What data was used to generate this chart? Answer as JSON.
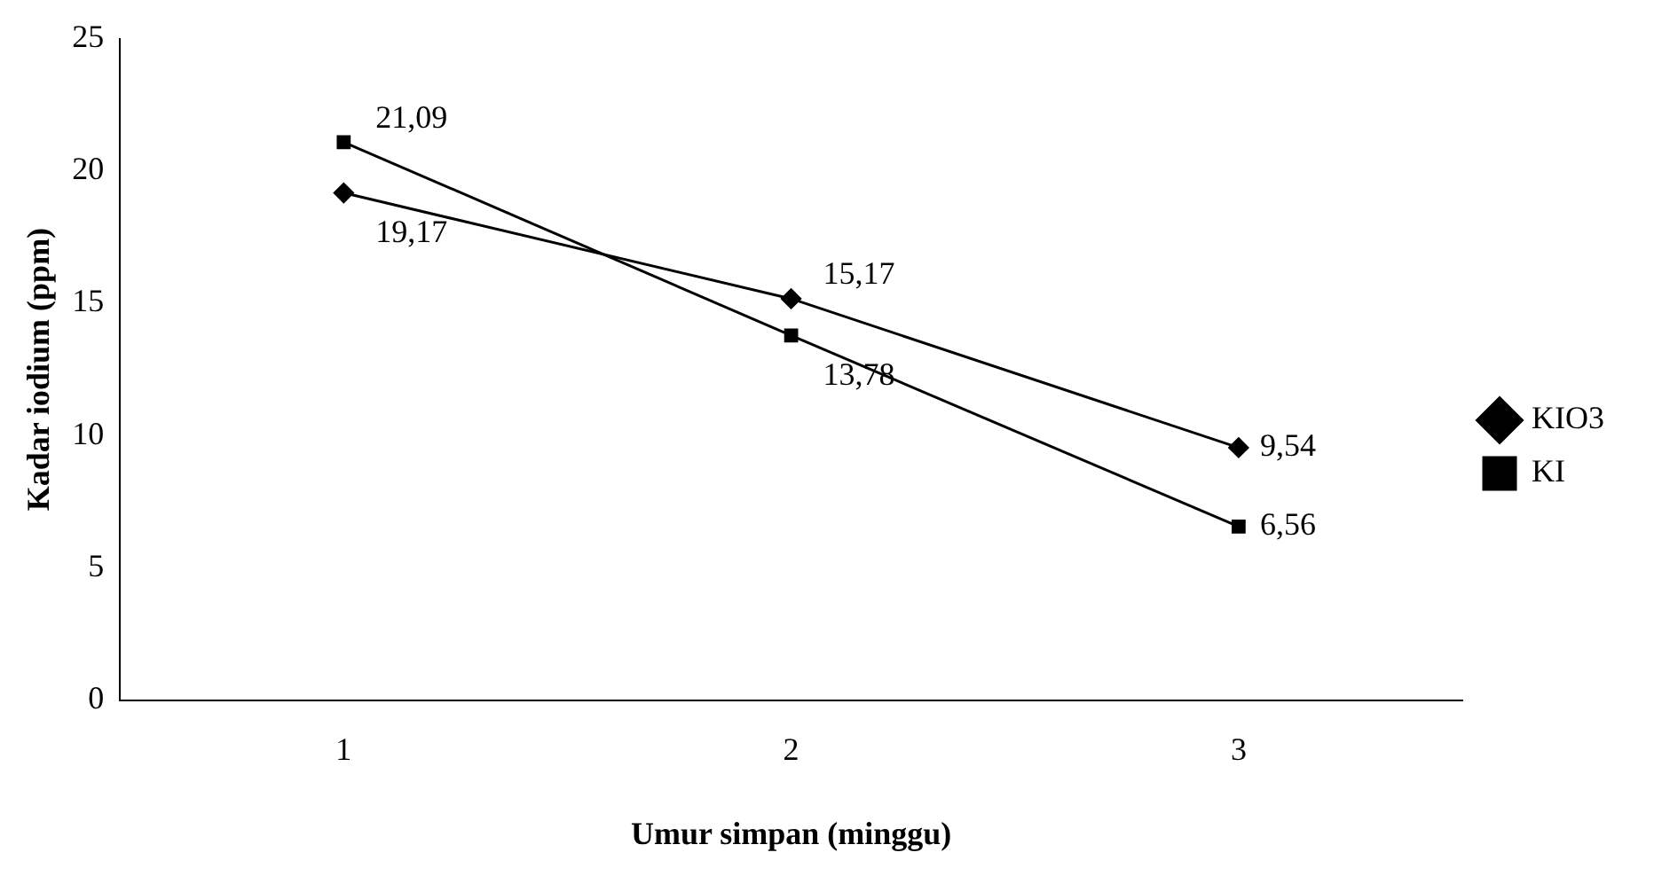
{
  "chart_data": {
    "type": "line",
    "xlabel": "Umur simpan (minggu)",
    "ylabel": "Kadar iodium (ppm)",
    "categories": [
      "1",
      "2",
      "3"
    ],
    "series": [
      {
        "name": "KIO3",
        "color": "#000000",
        "marker": "diamond",
        "values": [
          19.17,
          15.17,
          9.54
        ],
        "value_labels": [
          "19,17",
          "15,17",
          "9,54"
        ]
      },
      {
        "name": "KI",
        "color": "#000000",
        "marker": "square",
        "values": [
          21.09,
          13.78,
          6.56
        ],
        "value_labels": [
          "21,09",
          "13,78",
          "6,56"
        ]
      }
    ],
    "ylim": [
      0,
      25
    ],
    "yticks": [
      0,
      5,
      10,
      15,
      20,
      25
    ],
    "grid": false,
    "legend": "right",
    "line_style": "solid"
  }
}
